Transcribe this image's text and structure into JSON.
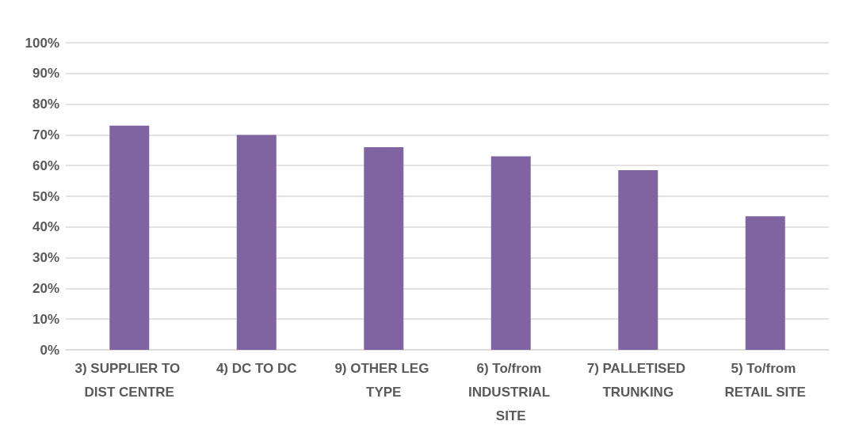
{
  "chart_data": {
    "type": "bar",
    "categories": [
      "3) SUPPLIER TO DIST CENTRE",
      "4) DC TO DC",
      "9) OTHER LEG TYPE",
      "6) To/from INDUSTRIAL SITE",
      "7) PALLETISED TRUNKING",
      "5) To/from RETAIL SITE"
    ],
    "values": [
      73,
      70,
      66,
      63,
      58.5,
      43.5
    ],
    "color": "#8064a2",
    "ylim": [
      0,
      100
    ],
    "yticks": [
      {
        "value": 0,
        "label": "0%"
      },
      {
        "value": 10,
        "label": "10%"
      },
      {
        "value": 20,
        "label": "20%"
      },
      {
        "value": 30,
        "label": "30%"
      },
      {
        "value": 40,
        "label": "40%"
      },
      {
        "value": 50,
        "label": "50%"
      },
      {
        "value": 60,
        "label": "60%"
      },
      {
        "value": 70,
        "label": "70%"
      },
      {
        "value": 80,
        "label": "80%"
      },
      {
        "value": 90,
        "label": "90%"
      },
      {
        "value": 100,
        "label": "100%"
      }
    ],
    "grid": "y"
  }
}
